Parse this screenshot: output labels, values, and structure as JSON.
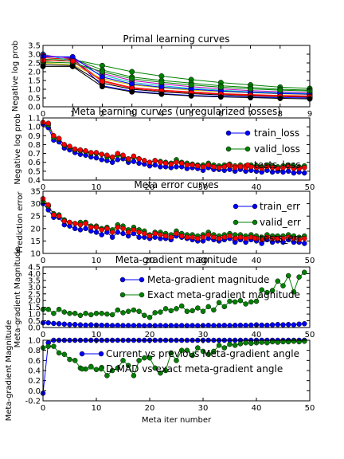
{
  "chart_data": [
    {
      "type": "line",
      "title": "Primal learning curves",
      "xlabel": "",
      "ylabel": "Negative log prob",
      "xlim": [
        0,
        9
      ],
      "ylim": [
        0,
        3.5
      ],
      "xticks": [
        "0",
        "1",
        "2",
        "3",
        "4",
        "5",
        "6",
        "7",
        "8",
        "9"
      ],
      "yticks": [
        "0.0",
        "0.5",
        "1.0",
        "1.5",
        "2.0",
        "2.5",
        "3.0",
        "3.5"
      ],
      "x": [
        0,
        1,
        2,
        3,
        4,
        5,
        6,
        7,
        8,
        9
      ],
      "series": [
        {
          "color": "#008000",
          "values": [
            2.6,
            2.7,
            2.35,
            2.0,
            1.75,
            1.55,
            1.38,
            1.25,
            1.12,
            1.05
          ]
        },
        {
          "color": "#008000",
          "values": [
            2.7,
            2.75,
            2.1,
            1.7,
            1.5,
            1.35,
            1.2,
            1.1,
            1.0,
            0.95
          ]
        },
        {
          "color": "#0000ff",
          "values": [
            2.9,
            2.8,
            1.2,
            0.9,
            0.75,
            0.65,
            0.6,
            0.55,
            0.52,
            0.5
          ]
        },
        {
          "color": "#ff0000",
          "values": [
            2.8,
            2.7,
            1.5,
            1.1,
            0.95,
            0.85,
            0.75,
            0.7,
            0.65,
            0.62
          ]
        },
        {
          "color": "#00bfbf",
          "values": [
            3.0,
            2.6,
            1.8,
            1.4,
            1.2,
            1.05,
            0.95,
            0.85,
            0.8,
            0.75
          ]
        },
        {
          "color": "#bf00bf",
          "values": [
            2.95,
            2.75,
            1.9,
            1.5,
            1.3,
            1.15,
            1.02,
            0.92,
            0.86,
            0.8
          ]
        },
        {
          "color": "#bfbf00",
          "values": [
            2.5,
            2.4,
            1.6,
            1.25,
            1.08,
            0.95,
            0.86,
            0.8,
            0.74,
            0.7
          ]
        },
        {
          "color": "#000000",
          "values": [
            2.4,
            2.35,
            1.35,
            1.0,
            0.85,
            0.75,
            0.68,
            0.62,
            0.58,
            0.55
          ]
        },
        {
          "color": "#0000ff",
          "values": [
            2.85,
            2.85,
            1.7,
            1.3,
            1.12,
            1.0,
            0.9,
            0.82,
            0.76,
            0.72
          ]
        },
        {
          "color": "#008000",
          "values": [
            2.55,
            2.5,
            2.0,
            1.6,
            1.4,
            1.25,
            1.12,
            1.02,
            0.95,
            0.9
          ]
        },
        {
          "color": "#ff0000",
          "values": [
            2.65,
            2.6,
            1.45,
            1.05,
            0.9,
            0.8,
            0.72,
            0.66,
            0.6,
            0.58
          ]
        },
        {
          "color": "#000000",
          "values": [
            2.3,
            2.3,
            1.15,
            0.85,
            0.72,
            0.62,
            0.56,
            0.52,
            0.48,
            0.45
          ]
        }
      ]
    },
    {
      "type": "line",
      "title": "Meta learning curves (unregularized losses)",
      "xlabel": "",
      "ylabel": "Negative log prob",
      "xlim": [
        0,
        50
      ],
      "ylim": [
        0.4,
        1.1
      ],
      "xticks": [
        "0",
        "10",
        "20",
        "30",
        "40",
        "50"
      ],
      "yticks": [
        "0.4",
        "0.5",
        "0.6",
        "0.7",
        "0.8",
        "0.9",
        "1.0",
        "1.1"
      ],
      "legend": "upper right",
      "series": [
        {
          "name": "train_loss",
          "color": "#0000ff",
          "values": [
            1.03,
            0.99,
            0.85,
            0.83,
            0.76,
            0.74,
            0.71,
            0.69,
            0.68,
            0.66,
            0.65,
            0.63,
            0.62,
            0.6,
            0.63,
            0.64,
            0.6,
            0.61,
            0.59,
            0.58,
            0.56,
            0.57,
            0.55,
            0.55,
            0.54,
            0.55,
            0.55,
            0.53,
            0.54,
            0.53,
            0.51,
            0.54,
            0.52,
            0.52,
            0.51,
            0.52,
            0.5,
            0.52,
            0.5,
            0.51,
            0.5,
            0.49,
            0.51,
            0.49,
            0.5,
            0.49,
            0.5,
            0.48,
            0.49,
            0.48
          ]
        },
        {
          "name": "valid_loss",
          "color": "#008000",
          "values": [
            1.05,
            1.02,
            0.88,
            0.86,
            0.79,
            0.77,
            0.74,
            0.73,
            0.72,
            0.7,
            0.7,
            0.69,
            0.66,
            0.65,
            0.68,
            0.67,
            0.63,
            0.66,
            0.64,
            0.62,
            0.6,
            0.62,
            0.61,
            0.6,
            0.59,
            0.63,
            0.6,
            0.59,
            0.58,
            0.57,
            0.57,
            0.59,
            0.57,
            0.56,
            0.57,
            0.58,
            0.56,
            0.57,
            0.56,
            0.57,
            0.56,
            0.55,
            0.57,
            0.56,
            0.55,
            0.56,
            0.57,
            0.56,
            0.55,
            0.56
          ]
        },
        {
          "name": "tests_loss",
          "color": "#ff0000",
          "values": [
            1.05,
            1.04,
            0.9,
            0.87,
            0.8,
            0.78,
            0.75,
            0.74,
            0.73,
            0.71,
            0.71,
            0.69,
            0.68,
            0.66,
            0.7,
            0.68,
            0.64,
            0.67,
            0.64,
            0.62,
            0.6,
            0.62,
            0.6,
            0.59,
            0.58,
            0.6,
            0.59,
            0.57,
            0.57,
            0.56,
            0.55,
            0.57,
            0.55,
            0.54,
            0.55,
            0.56,
            0.54,
            0.55,
            0.54,
            0.55,
            0.54,
            0.53,
            0.55,
            0.54,
            0.53,
            0.54,
            0.55,
            0.53,
            0.53,
            0.54
          ]
        }
      ]
    },
    {
      "type": "line",
      "title": "Meta error curves",
      "xlabel": "",
      "ylabel": "Prediction error",
      "xlim": [
        0,
        50
      ],
      "ylim": [
        10,
        35
      ],
      "xticks": [
        "0",
        "10",
        "20",
        "30",
        "40",
        "50"
      ],
      "yticks": [
        "10",
        "15",
        "20",
        "25",
        "30",
        "35"
      ],
      "legend": "upper right",
      "series": [
        {
          "name": "train_err",
          "color": "#0000ff",
          "values": [
            30.0,
            27.5,
            24.5,
            24.5,
            21.5,
            21.0,
            20.0,
            19.5,
            20.0,
            19.0,
            18.5,
            17.5,
            18.5,
            16.5,
            18.5,
            18.0,
            17.0,
            18.0,
            16.5,
            16.5,
            16.0,
            16.5,
            16.0,
            16.0,
            15.5,
            17.0,
            16.5,
            16.0,
            15.5,
            15.0,
            15.0,
            16.0,
            15.5,
            15.0,
            15.5,
            16.0,
            14.5,
            15.5,
            14.5,
            15.5,
            15.0,
            14.0,
            15.5,
            14.5,
            15.0,
            14.5,
            15.5,
            14.5,
            14.5,
            14.0
          ]
        },
        {
          "name": "valid_err",
          "color": "#008000",
          "values": [
            31.0,
            29.0,
            26.0,
            25.5,
            23.5,
            22.5,
            22.0,
            22.5,
            22.5,
            21.0,
            21.0,
            20.0,
            20.5,
            19.5,
            21.5,
            21.0,
            19.5,
            20.5,
            19.5,
            19.0,
            17.5,
            18.5,
            18.5,
            18.0,
            17.5,
            19.0,
            18.0,
            17.5,
            17.5,
            17.0,
            17.5,
            18.5,
            17.5,
            17.0,
            17.5,
            18.0,
            17.5,
            17.5,
            17.0,
            17.5,
            17.0,
            16.5,
            17.5,
            17.0,
            17.0,
            17.0,
            17.5,
            17.0,
            16.5,
            17.0
          ]
        },
        {
          "name": "tests_err",
          "color": "#ff0000",
          "values": [
            32.0,
            29.5,
            25.5,
            25.0,
            23.0,
            22.5,
            22.0,
            21.5,
            22.0,
            20.5,
            20.5,
            19.5,
            20.0,
            18.5,
            20.5,
            20.0,
            18.5,
            19.5,
            18.5,
            18.0,
            17.0,
            18.0,
            17.5,
            17.0,
            16.5,
            18.0,
            17.0,
            16.5,
            16.5,
            16.0,
            16.5,
            17.5,
            16.5,
            16.0,
            16.5,
            17.0,
            16.0,
            16.5,
            16.0,
            16.5,
            16.0,
            15.5,
            16.5,
            16.0,
            16.0,
            16.0,
            16.5,
            16.0,
            15.5,
            16.0
          ]
        }
      ]
    },
    {
      "type": "line",
      "title": "Meta-gradient magnitude",
      "xlabel": "",
      "ylabel": "Meta-gradient Magnitude",
      "xlim": [
        0,
        50
      ],
      "ylim": [
        0,
        4.5
      ],
      "xticks": [
        "0",
        "10",
        "20",
        "30",
        "40",
        "50"
      ],
      "yticks": [
        "0.0",
        "0.5",
        "1.0",
        "1.5",
        "2.0",
        "2.5",
        "3.0",
        "3.5",
        "4.0",
        "4.5"
      ],
      "legend": "upper center",
      "series": [
        {
          "name": "Meta-gradient magnitude",
          "color": "#0000ff",
          "values": [
            0.35,
            0.35,
            0.3,
            0.28,
            0.25,
            0.22,
            0.22,
            0.2,
            0.18,
            0.2,
            0.18,
            0.17,
            0.17,
            0.15,
            0.16,
            0.15,
            0.15,
            0.15,
            0.15,
            0.14,
            0.15,
            0.14,
            0.15,
            0.14,
            0.15,
            0.14,
            0.15,
            0.14,
            0.15,
            0.14,
            0.15,
            0.16,
            0.15,
            0.15,
            0.16,
            0.15,
            0.16,
            0.17,
            0.16,
            0.18,
            0.2,
            0.18,
            0.17,
            0.2,
            0.22,
            0.2,
            0.22,
            0.2,
            0.25,
            0.28
          ]
        },
        {
          "name": "Exact meta-gradient magnitude",
          "color": "#008000",
          "values": [
            1.35,
            1.35,
            1.05,
            1.35,
            1.15,
            1.05,
            1.05,
            0.9,
            1.05,
            0.95,
            1.05,
            1.05,
            1.0,
            0.95,
            1.3,
            1.1,
            1.2,
            1.3,
            1.2,
            0.9,
            0.75,
            1.1,
            1.15,
            1.4,
            1.25,
            1.4,
            1.6,
            1.2,
            1.25,
            1.45,
            1.2,
            1.55,
            1.3,
            1.85,
            1.55,
            1.95,
            1.9,
            2.0,
            1.75,
            1.9,
            1.95,
            2.8,
            2.6,
            2.75,
            3.45,
            3.1,
            3.85,
            2.65,
            3.75,
            4.1
          ]
        }
      ]
    },
    {
      "type": "line",
      "title": "",
      "xlabel": "Meta iter number",
      "ylabel": "Meta-gradient Magnitude",
      "xlim": [
        0,
        50
      ],
      "ylim": [
        -0.2,
        1.0
      ],
      "xticks": [
        "0",
        "10",
        "20",
        "30",
        "40",
        "50"
      ],
      "yticks": [
        "-0.2",
        "0.0",
        "0.2",
        "0.4",
        "0.6",
        "0.8",
        "1.0"
      ],
      "legend": "upper center",
      "series": [
        {
          "name": "Current vs previous Meta-gradient angle",
          "color": "#0000ff",
          "values": [
            -0.05,
            0.95,
            1.0,
            1.0,
            1.0,
            1.0,
            1.0,
            1.0,
            1.0,
            1.0,
            1.0,
            1.0,
            1.0,
            1.0,
            1.0,
            1.0,
            1.0,
            1.0,
            1.0,
            1.0,
            1.0,
            1.0,
            1.0,
            1.0,
            1.0,
            1.0,
            1.0,
            1.0,
            1.0,
            1.0,
            1.0,
            1.0,
            1.0,
            1.0,
            1.0,
            1.0,
            1.0,
            1.0,
            1.0,
            1.0,
            1.0,
            1.0,
            1.0,
            1.0,
            1.0,
            1.0,
            1.0,
            1.0,
            1.0,
            1.0
          ]
        },
        {
          "name": "D-MAD vs exact meta-gradient angle",
          "color": "#008000",
          "values": [
            0.85,
            0.88,
            0.88,
            0.75,
            0.72,
            0.62,
            0.6,
            0.45,
            0.43,
            0.48,
            0.42,
            0.46,
            0.3,
            0.4,
            0.45,
            0.6,
            0.5,
            0.3,
            0.6,
            0.65,
            0.65,
            0.45,
            0.35,
            0.4,
            0.75,
            0.6,
            0.8,
            0.8,
            0.7,
            0.85,
            0.78,
            0.72,
            0.78,
            0.9,
            0.85,
            0.92,
            0.9,
            0.93,
            0.95,
            0.94,
            0.95,
            0.96,
            0.95,
            0.97,
            0.96,
            0.97,
            0.97,
            0.98,
            0.97,
            0.98
          ]
        }
      ]
    }
  ]
}
